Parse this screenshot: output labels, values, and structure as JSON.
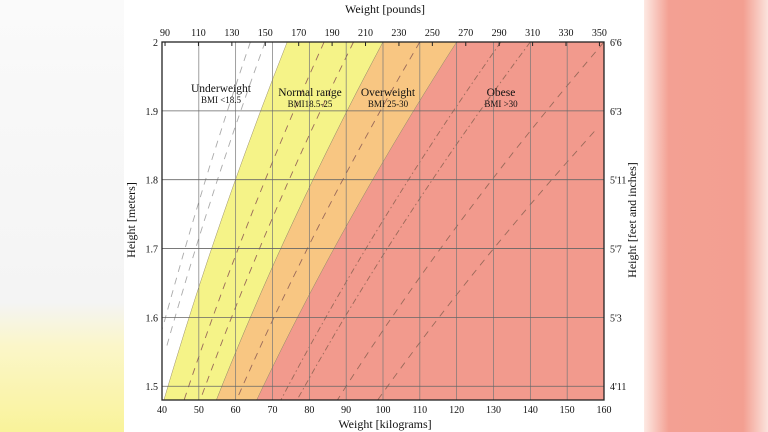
{
  "chart_data": {
    "type": "area",
    "xlabel": "Weight [kilograms]",
    "x2label": "Weight [pounds]",
    "ylabel": "Height [meters]",
    "y2label": "Height [feet and inches]",
    "xlim": [
      40,
      160
    ],
    "ylim": [
      1.48,
      2.0
    ],
    "grid": true,
    "x_ticks": [
      40,
      50,
      60,
      70,
      80,
      90,
      100,
      110,
      120,
      130,
      140,
      150,
      160
    ],
    "x2_ticks_lb": [
      90,
      110,
      130,
      150,
      170,
      190,
      210,
      230,
      250,
      270,
      290,
      310,
      330,
      350
    ],
    "y_ticks": [
      1.5,
      1.6,
      1.7,
      1.8,
      1.9,
      2
    ],
    "y_tick_labels": [
      "1.5",
      "1.6",
      "1.7",
      "1.8",
      "1.9",
      "2"
    ],
    "y2_tick_labels": [
      "4'11",
      "5'3",
      "5'7",
      "5'11",
      "6'3",
      "6'6"
    ],
    "regions": [
      {
        "name": "Underweight",
        "label": "BMI <18.5",
        "bmi_min": 0,
        "bmi_max": 18.5,
        "color": "#ffffff"
      },
      {
        "name": "Normal range",
        "label": "BMI18.5-25",
        "bmi_min": 18.5,
        "bmi_max": 25,
        "color": "#f5f388"
      },
      {
        "name": "Overweight",
        "label": "BMI 25-30",
        "bmi_min": 25,
        "bmi_max": 30,
        "color": "#f8c682"
      },
      {
        "name": "Obese",
        "label": "BMI >30",
        "bmi_min": 30,
        "bmi_max": 100,
        "color": "#f29a8d"
      }
    ],
    "reference_bmi_lines": [
      16,
      17,
      21,
      23,
      27.5,
      33,
      35,
      40,
      45
    ]
  }
}
